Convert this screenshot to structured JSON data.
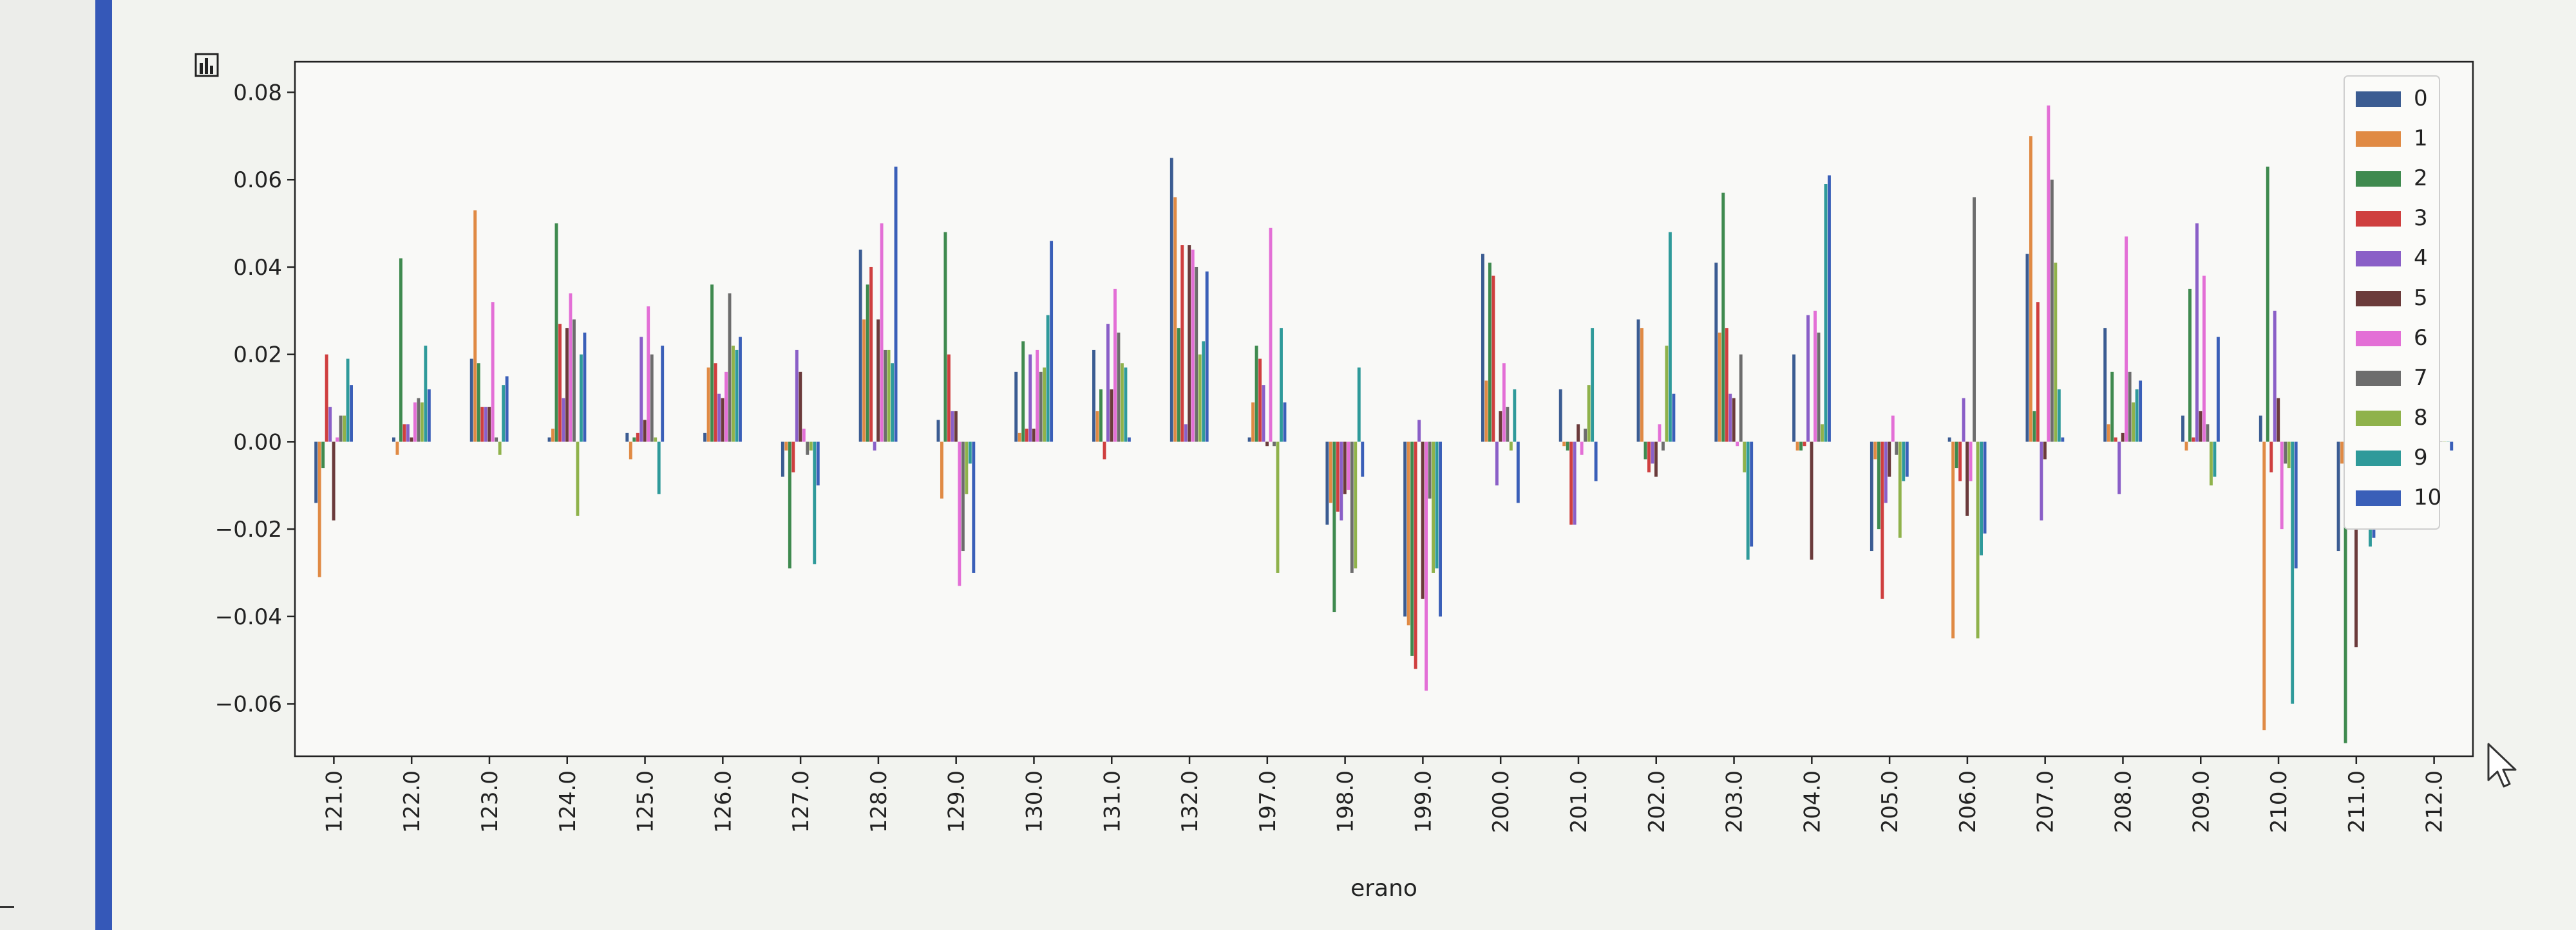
{
  "chart_data": {
    "type": "bar",
    "xlabel": "erano",
    "ylabel": "",
    "ylim": [
      -0.072,
      0.087
    ],
    "yticks": [
      -0.06,
      -0.04,
      -0.02,
      0.0,
      0.02,
      0.04,
      0.06,
      0.08
    ],
    "ytick_labels": [
      "−0.06",
      "−0.04",
      "−0.02",
      "0.00",
      "0.02",
      "0.04",
      "0.06",
      "0.08"
    ],
    "grid": false,
    "legend_position": "top-right",
    "categories": [
      "121.0",
      "122.0",
      "123.0",
      "124.0",
      "125.0",
      "126.0",
      "127.0",
      "128.0",
      "129.0",
      "130.0",
      "131.0",
      "132.0",
      "197.0",
      "198.0",
      "199.0",
      "200.0",
      "201.0",
      "202.0",
      "203.0",
      "204.0",
      "205.0",
      "206.0",
      "207.0",
      "208.0",
      "209.0",
      "210.0",
      "211.0",
      "212.0"
    ],
    "series": [
      {
        "name": "0",
        "color": "#3b5c92",
        "values": [
          -0.014,
          0.001,
          0.019,
          0.001,
          0.002,
          0.002,
          -0.008,
          0.044,
          0.005,
          0.016,
          0.021,
          0.065,
          0.001,
          -0.019,
          -0.04,
          0.043,
          0.012,
          0.028,
          0.041,
          0.02,
          -0.025,
          0.001,
          0.043,
          0.026,
          0.006,
          0.006,
          -0.025,
          0.0
        ]
      },
      {
        "name": "1",
        "color": "#e08a44",
        "values": [
          -0.031,
          -0.003,
          0.053,
          0.003,
          -0.004,
          0.017,
          -0.002,
          0.028,
          -0.013,
          0.002,
          0.007,
          0.056,
          0.009,
          -0.014,
          -0.042,
          0.014,
          -0.001,
          0.026,
          0.025,
          -0.002,
          -0.004,
          -0.045,
          0.07,
          0.004,
          -0.002,
          -0.066,
          -0.005,
          0.0
        ]
      },
      {
        "name": "2",
        "color": "#3f8a4f",
        "values": [
          -0.006,
          0.042,
          0.018,
          0.05,
          0.001,
          0.036,
          -0.029,
          0.036,
          0.048,
          0.023,
          0.012,
          0.026,
          0.022,
          -0.039,
          -0.049,
          0.041,
          -0.002,
          -0.004,
          0.057,
          -0.002,
          -0.02,
          -0.006,
          0.007,
          0.016,
          0.035,
          0.063,
          -0.069,
          0.0
        ]
      },
      {
        "name": "3",
        "color": "#cf3f3f",
        "values": [
          0.02,
          0.004,
          0.008,
          0.027,
          0.002,
          0.018,
          -0.007,
          0.04,
          0.02,
          0.003,
          -0.004,
          0.045,
          0.019,
          -0.016,
          -0.052,
          0.038,
          -0.019,
          -0.007,
          0.026,
          -0.001,
          -0.036,
          -0.009,
          0.032,
          0.001,
          0.001,
          -0.007,
          -0.014,
          0.0
        ]
      },
      {
        "name": "4",
        "color": "#8a5fc7",
        "values": [
          0.008,
          0.004,
          0.008,
          0.01,
          0.024,
          0.011,
          0.021,
          -0.002,
          0.007,
          0.02,
          0.027,
          0.004,
          0.013,
          -0.018,
          0.005,
          -0.01,
          -0.019,
          -0.005,
          0.011,
          0.029,
          -0.014,
          0.01,
          -0.018,
          -0.012,
          0.05,
          0.03,
          0.008,
          0.0
        ]
      },
      {
        "name": "5",
        "color": "#6b3b3b",
        "values": [
          -0.018,
          0.001,
          0.008,
          0.026,
          0.005,
          0.01,
          0.016,
          0.028,
          0.007,
          0.003,
          0.012,
          0.045,
          -0.001,
          -0.012,
          -0.036,
          0.007,
          0.004,
          -0.008,
          0.01,
          -0.027,
          -0.008,
          -0.017,
          -0.004,
          0.002,
          0.007,
          0.01,
          -0.047,
          0.0
        ]
      },
      {
        "name": "6",
        "color": "#e36fd6",
        "values": [
          0.001,
          0.009,
          0.032,
          0.034,
          0.031,
          0.016,
          0.003,
          0.05,
          -0.033,
          0.021,
          0.035,
          0.044,
          0.049,
          -0.011,
          -0.057,
          0.018,
          -0.003,
          0.004,
          -0.001,
          0.03,
          0.006,
          -0.009,
          0.077,
          0.047,
          0.038,
          -0.02,
          -0.008,
          0.0
        ]
      },
      {
        "name": "7",
        "color": "#6d6d6d",
        "values": [
          0.006,
          0.01,
          0.001,
          0.028,
          0.02,
          0.034,
          -0.003,
          0.021,
          -0.025,
          0.016,
          0.025,
          0.04,
          -0.001,
          -0.03,
          -0.013,
          0.008,
          0.003,
          -0.002,
          0.02,
          0.025,
          -0.003,
          0.056,
          0.06,
          0.016,
          0.004,
          -0.005,
          -0.014,
          0.0
        ]
      },
      {
        "name": "8",
        "color": "#8fb24b",
        "values": [
          0.006,
          0.009,
          -0.003,
          -0.017,
          0.001,
          0.022,
          -0.002,
          0.021,
          -0.012,
          0.017,
          0.018,
          0.02,
          -0.03,
          -0.029,
          -0.03,
          -0.002,
          0.013,
          0.022,
          -0.007,
          0.004,
          -0.022,
          -0.045,
          0.041,
          0.009,
          -0.01,
          -0.006,
          -0.02,
          0.0
        ]
      },
      {
        "name": "9",
        "color": "#2f9a9a",
        "values": [
          0.019,
          0.022,
          0.013,
          0.02,
          -0.012,
          0.021,
          -0.028,
          0.018,
          -0.005,
          0.029,
          0.017,
          0.023,
          0.026,
          0.017,
          -0.029,
          0.012,
          0.026,
          0.048,
          -0.027,
          0.059,
          -0.009,
          -0.026,
          0.012,
          0.012,
          -0.008,
          -0.06,
          -0.024,
          0.0
        ]
      },
      {
        "name": "10",
        "color": "#3a5fb8",
        "values": [
          0.013,
          0.012,
          0.015,
          0.025,
          0.022,
          0.024,
          -0.01,
          0.063,
          -0.03,
          0.046,
          0.001,
          0.039,
          0.009,
          -0.008,
          -0.04,
          -0.014,
          -0.009,
          0.011,
          -0.024,
          0.061,
          -0.008,
          -0.021,
          0.001,
          0.014,
          0.024,
          -0.029,
          -0.022,
          -0.002
        ]
      }
    ]
  }
}
